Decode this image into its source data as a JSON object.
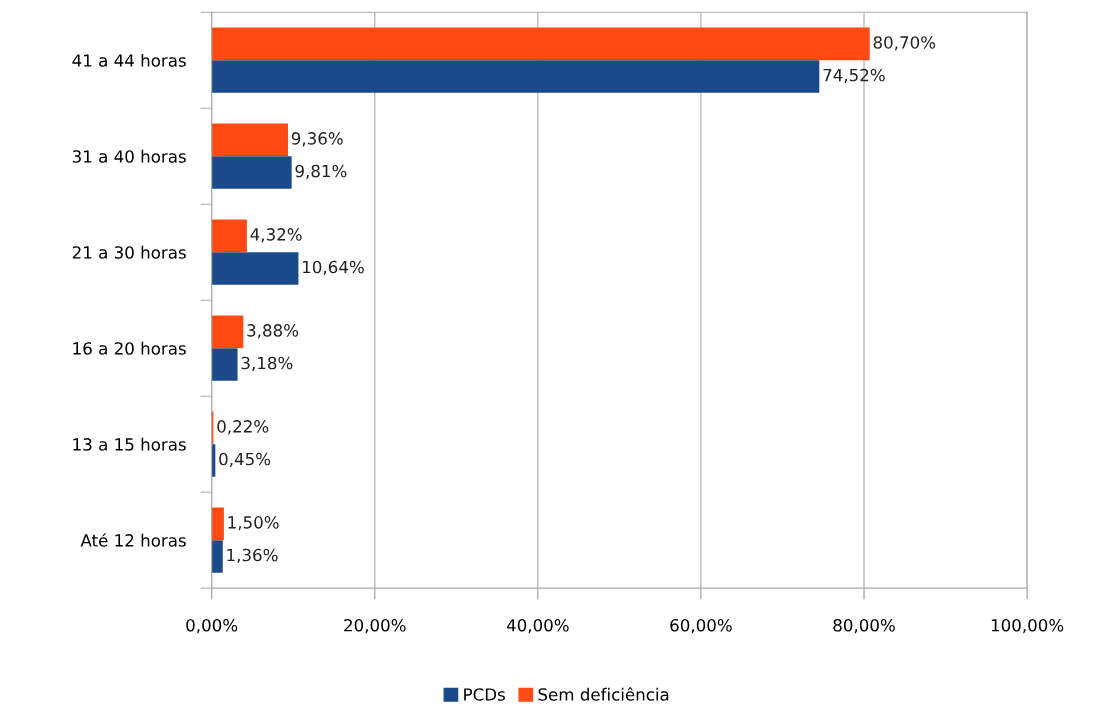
{
  "chart_data": {
    "type": "bar",
    "orientation": "horizontal",
    "categories": [
      "41 a 44 horas",
      "31 a 40 horas",
      "21 a 30 horas",
      "16 a 20 horas",
      "13 a 15 horas",
      "Até 12 horas"
    ],
    "series": [
      {
        "name": "PCDs",
        "color": "#1a4a8a",
        "values": [
          74.52,
          9.81,
          10.64,
          3.18,
          0.45,
          1.36
        ],
        "value_labels": [
          "74,52%",
          "9,81%",
          "10,64%",
          "3,18%",
          "0,45%",
          "1,36%"
        ]
      },
      {
        "name": "Sem deficiência",
        "color": "#ff4a14",
        "values": [
          80.7,
          9.36,
          4.32,
          3.88,
          0.22,
          1.5
        ],
        "value_labels": [
          "80,70%",
          "9,36%",
          "4,32%",
          "3,88%",
          "0,22%",
          "1,50%"
        ]
      }
    ],
    "xlim": [
      0,
      100
    ],
    "xticks": [
      {
        "value": 0,
        "label": "0,00%"
      },
      {
        "value": 20,
        "label": "20,00%"
      },
      {
        "value": 40,
        "label": "40,00%"
      },
      {
        "value": 60,
        "label": "60,00%"
      },
      {
        "value": 80,
        "label": "80,00%"
      },
      {
        "value": 100,
        "label": "100,00%"
      }
    ],
    "grid": "x",
    "legend": "bottom"
  }
}
